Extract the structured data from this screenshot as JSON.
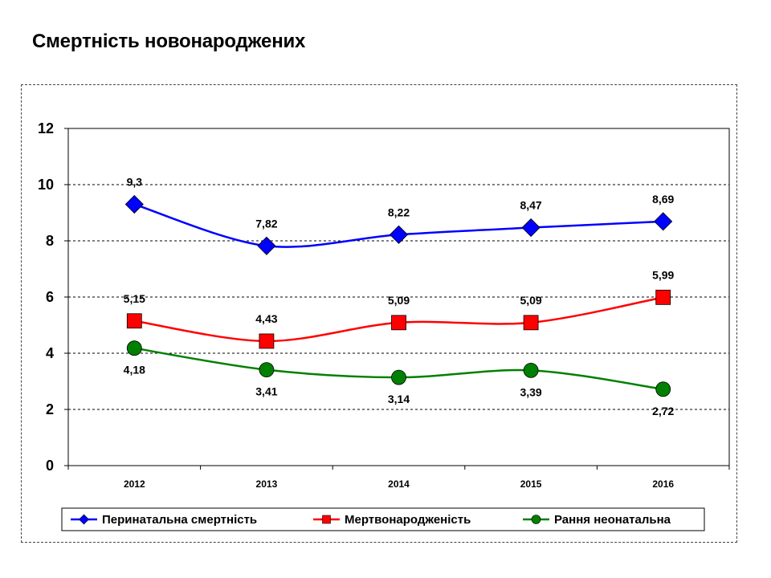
{
  "page": {
    "title": "Смертність новонароджених"
  },
  "chart_data": {
    "type": "line",
    "title": "",
    "xlabel": "",
    "ylabel": "",
    "x": [
      "2012",
      "2013",
      "2014",
      "2015",
      "2016"
    ],
    "ylim": [
      0,
      12
    ],
    "yticks": [
      0,
      2,
      4,
      6,
      8,
      10,
      12
    ],
    "grid": "horizontal dashed",
    "legend_position": "bottom",
    "series": [
      {
        "name": "Перинатальна смертність",
        "values": [
          9.3,
          7.82,
          8.22,
          8.47,
          8.69
        ],
        "labels": [
          "9,3",
          "7,82",
          "8,22",
          "8,47",
          "8,69"
        ],
        "color": "#0000FF",
        "marker": "diamond",
        "label_side": "above"
      },
      {
        "name": "Мертвонародженість",
        "values": [
          5.15,
          4.43,
          5.09,
          5.09,
          5.99
        ],
        "labels": [
          "5,15",
          "4,43",
          "5,09",
          "5,09",
          "5,99"
        ],
        "color": "#FF0000",
        "marker": "square",
        "label_side": "above"
      },
      {
        "name": "Рання неонатальна",
        "values": [
          4.18,
          3.41,
          3.14,
          3.39,
          2.72
        ],
        "labels": [
          "4,18",
          "3,41",
          "3,14",
          "3,39",
          "2,72"
        ],
        "color": "#008000",
        "marker": "circle",
        "label_side": "below"
      }
    ]
  }
}
